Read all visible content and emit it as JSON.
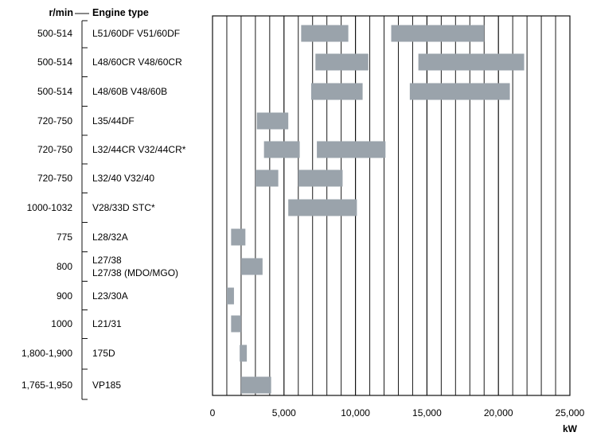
{
  "chart_data": {
    "type": "bar",
    "orientation": "horizontal-range",
    "col_header_rpm": "r/min",
    "col_header_engine": "Engine type",
    "xlabel": "kW",
    "xlim": [
      0,
      25000
    ],
    "x_ticks": [
      {
        "value": 0,
        "label": "0"
      },
      {
        "value": 5000,
        "label": "5,000"
      },
      {
        "value": 10000,
        "label": "10,000"
      },
      {
        "value": 15000,
        "label": "15,000"
      },
      {
        "value": 20000,
        "label": "20,000"
      },
      {
        "value": 25000,
        "label": "25,000"
      }
    ],
    "grid": "vertical, every 1,000 kW",
    "bar_color": "#9aa3ab",
    "rows": [
      {
        "rpm": "500-514",
        "engine": [
          "L51/60DF V51/60DF"
        ],
        "ranges": [
          [
            6200,
            9500
          ],
          [
            12500,
            19000
          ]
        ]
      },
      {
        "rpm": "500-514",
        "engine": [
          "L48/60CR V48/60CR"
        ],
        "ranges": [
          [
            7200,
            10900
          ],
          [
            14400,
            21800
          ]
        ]
      },
      {
        "rpm": "500-514",
        "engine": [
          "L48/60B V48/60B"
        ],
        "ranges": [
          [
            6900,
            10500
          ],
          [
            13800,
            20800
          ]
        ]
      },
      {
        "rpm": "720-750",
        "engine": [
          "L35/44DF"
        ],
        "ranges": [
          [
            3100,
            5300
          ]
        ]
      },
      {
        "rpm": "720-750",
        "engine": [
          "L32/44CR V32/44CR*"
        ],
        "ranges": [
          [
            3600,
            6100
          ],
          [
            7300,
            12100
          ]
        ]
      },
      {
        "rpm": "720-750",
        "engine": [
          "L32/40 V32/40"
        ],
        "ranges": [
          [
            3000,
            4600
          ],
          [
            6000,
            9100
          ]
        ]
      },
      {
        "rpm": "1000-1032",
        "engine": [
          "V28/33D STC*"
        ],
        "ranges": [
          [
            5300,
            10100
          ]
        ]
      },
      {
        "rpm": "775",
        "engine": [
          "L28/32A"
        ],
        "ranges": [
          [
            1300,
            2300
          ]
        ]
      },
      {
        "rpm": "800",
        "engine": [
          "L27/38",
          "L27/38 (MDO/MGO)"
        ],
        "ranges": [
          [
            2000,
            3500
          ]
        ]
      },
      {
        "rpm": "900",
        "engine": [
          "L23/30A"
        ],
        "ranges": [
          [
            1000,
            1500
          ]
        ]
      },
      {
        "rpm": "1000",
        "engine": [
          "L21/31"
        ],
        "ranges": [
          [
            1300,
            2000
          ]
        ]
      },
      {
        "rpm": "1,800-1,900",
        "engine": [
          "175D"
        ],
        "ranges": [
          [
            1900,
            2400
          ]
        ]
      },
      {
        "rpm": "1,765-1,950",
        "engine": [
          "VP185"
        ],
        "ranges": [
          [
            2000,
            4100
          ]
        ]
      }
    ]
  }
}
